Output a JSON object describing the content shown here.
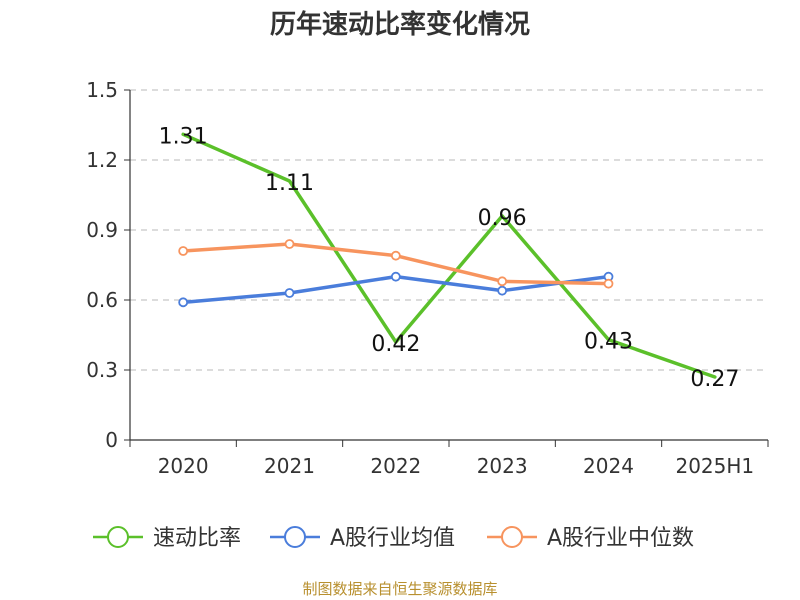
{
  "chart_data": {
    "type": "line",
    "title": "历年速动比率变化情况",
    "categories": [
      "2020",
      "2021",
      "2022",
      "2023",
      "2024",
      "2025H1"
    ],
    "ylim": [
      0,
      1.5
    ],
    "yticks": [
      "0",
      "0.3",
      "0.6",
      "0.9",
      "1.2",
      "1.5"
    ],
    "ytick_values": [
      0,
      0.3,
      0.6,
      0.9,
      1.2,
      1.5
    ],
    "grid": true,
    "legend_position": "bottom",
    "series": [
      {
        "name": "速动比率",
        "color": "#5bc02a",
        "values": [
          1.31,
          1.11,
          0.42,
          0.96,
          0.43,
          0.27
        ],
        "labels": [
          "1.31",
          "1.11",
          "0.42",
          "0.96",
          "0.43",
          "0.27"
        ],
        "show_labels": true,
        "show_markers": false
      },
      {
        "name": "A股行业均值",
        "color": "#4a7ddb",
        "values": [
          0.59,
          0.63,
          0.7,
          0.64,
          0.7,
          null
        ],
        "show_labels": false,
        "show_markers": true
      },
      {
        "name": "A股行业中位数",
        "color": "#f7945e",
        "values": [
          0.81,
          0.84,
          0.79,
          0.68,
          0.67,
          null
        ],
        "show_labels": false,
        "show_markers": true
      }
    ]
  },
  "footer": {
    "source": "制图数据来自恒生聚源数据库"
  }
}
